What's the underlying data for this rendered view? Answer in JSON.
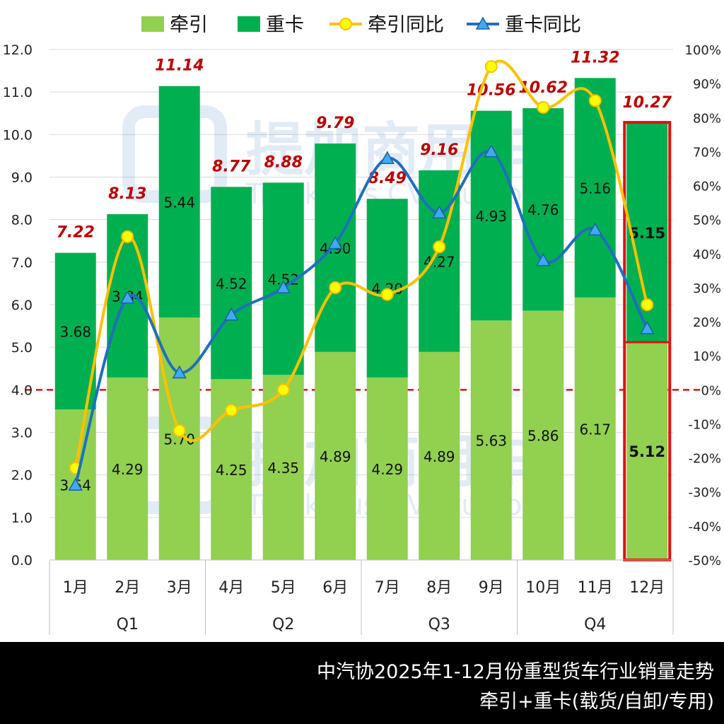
{
  "chart_data": {
    "type": "bar",
    "stacked": true,
    "categories": [
      "1月",
      "2月",
      "3月",
      "4月",
      "5月",
      "6月",
      "7月",
      "8月",
      "9月",
      "10月",
      "11月",
      "12月"
    ],
    "quarters": [
      "Q1",
      "Q2",
      "Q3",
      "Q4"
    ],
    "series": [
      {
        "name": "牵引",
        "type": "bar",
        "color": "#92d050",
        "values": [
          3.54,
          4.29,
          5.7,
          4.25,
          4.35,
          4.89,
          4.29,
          4.89,
          5.63,
          5.86,
          6.17,
          5.12
        ]
      },
      {
        "name": "重卡",
        "type": "bar",
        "color": "#00b050",
        "values": [
          3.68,
          3.84,
          5.44,
          4.52,
          4.52,
          4.9,
          4.2,
          4.27,
          4.93,
          4.76,
          5.16,
          5.15
        ]
      },
      {
        "name": "牵引同比",
        "type": "line",
        "axis": "right",
        "color": "#ffc000",
        "values": [
          -23,
          45,
          -12,
          -6,
          0,
          30,
          28,
          42,
          95,
          83,
          85,
          25
        ]
      },
      {
        "name": "重卡同比",
        "type": "line",
        "axis": "right",
        "color": "#1f6fbf",
        "values": [
          -28,
          27,
          5,
          22,
          30,
          43,
          68,
          52,
          70,
          38,
          47,
          18
        ]
      }
    ],
    "totals": [
      "7.22",
      "8.13",
      "11.14",
      "8.77",
      "8.88",
      "9.79",
      "8.49",
      "9.16",
      "10.56",
      "10.62",
      "11.32",
      "10.27"
    ],
    "bar_labels_bottom": [
      "3.54",
      "4.29",
      "5.70",
      "4.25",
      "4.35",
      "4.89",
      "4.29",
      "4.89",
      "5.63",
      "5.86",
      "6.17",
      "5.12"
    ],
    "bar_labels_top": [
      "3.68",
      "3.84",
      "5.44",
      "4.52",
      "4.52",
      "4.90",
      "4.20",
      "4.27",
      "4.93",
      "4.76",
      "5.16",
      "5.15"
    ],
    "ylim": [
      0,
      12
    ],
    "yticks": [
      "0.0",
      "1.0",
      "2.0",
      "3.0",
      "4.0",
      "5.0",
      "6.0",
      "7.0",
      "8.0",
      "9.0",
      "10.0",
      "11.0",
      "12.0"
    ],
    "y2lim": [
      -50,
      100
    ],
    "y2ticks": [
      "-50%",
      "-40%",
      "-30%",
      "-20%",
      "-10%",
      "0%",
      "10%",
      "20%",
      "30%",
      "40%",
      "50%",
      "60%",
      "70%",
      "80%",
      "90%",
      "100%"
    ],
    "reference_line_y2": 0,
    "highlight_category": "12月",
    "legend_position": "top",
    "grid": true
  },
  "watermark": {
    "cn": "提加商用车",
    "en": "TruckPlus CV studio"
  },
  "footer": {
    "line1": "中汽协2025年1-12月份重型货车行业销量走势",
    "line2": "牵引+重卡(载货/自卸/专用)"
  },
  "colors": {
    "tractor": "#92d050",
    "heavy": "#00b050",
    "tractor_yoy": "#ffc000",
    "heavy_yoy": "#1f6fbf",
    "total_label": "#c00000",
    "highlight_box": "#e01010",
    "zero_line": "#e01010"
  }
}
